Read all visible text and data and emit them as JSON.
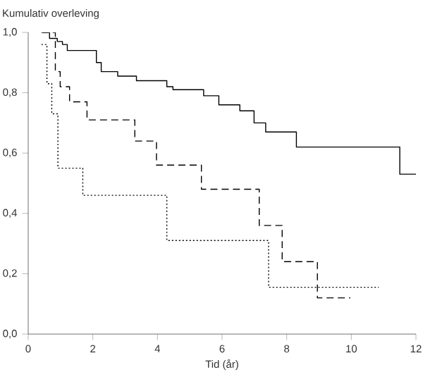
{
  "chart_data": {
    "type": "step",
    "ylabel": "Kumulativ overleving",
    "xlabel": "Tid (år)",
    "xlim": [
      0,
      12
    ],
    "xticks": [
      0,
      2,
      4,
      6,
      8,
      10,
      12
    ],
    "ylim": [
      0,
      1
    ],
    "yticks": [
      {
        "value": 0,
        "label": "0,0"
      },
      {
        "value": 0.2,
        "label": "0,2"
      },
      {
        "value": 0.4,
        "label": "0,4"
      },
      {
        "value": 0.6,
        "label": "0,6"
      },
      {
        "value": 0.8,
        "label": "0,8"
      },
      {
        "value": 1,
        "label": "1,0"
      }
    ],
    "grid": false,
    "series": [
      {
        "color": "#000000",
        "line_style": "solid",
        "x": [
          0.45,
          0.66,
          0.9,
          1.06,
          1.21,
          2.11,
          2.26,
          2.77,
          3.35,
          4.29,
          4.48,
          5.43,
          5.9,
          6.55,
          6.99,
          7.35,
          8.3,
          11.5,
          12.0
        ],
        "values": [
          1.0,
          0.98,
          0.97,
          0.96,
          0.94,
          0.9,
          0.87,
          0.855,
          0.84,
          0.82,
          0.81,
          0.79,
          0.76,
          0.74,
          0.7,
          0.67,
          0.62,
          0.53,
          0.53
        ]
      },
      {
        "color": "#000000",
        "line_style": "dashed",
        "x": [
          0.41,
          0.84,
          0.99,
          1.28,
          1.82,
          3.3,
          3.97,
          5.36,
          7.15,
          7.86,
          8.95,
          9.97
        ],
        "values": [
          1.0,
          0.87,
          0.82,
          0.77,
          0.71,
          0.64,
          0.56,
          0.48,
          0.36,
          0.24,
          0.12,
          0.12
        ]
      },
      {
        "color": "#000000",
        "line_style": "dotted",
        "x": [
          0.41,
          0.58,
          0.73,
          0.92,
          1.69,
          4.29,
          7.44,
          10.85
        ],
        "values": [
          0.96,
          0.83,
          0.73,
          0.55,
          0.46,
          0.31,
          0.155,
          0.155
        ]
      }
    ]
  }
}
